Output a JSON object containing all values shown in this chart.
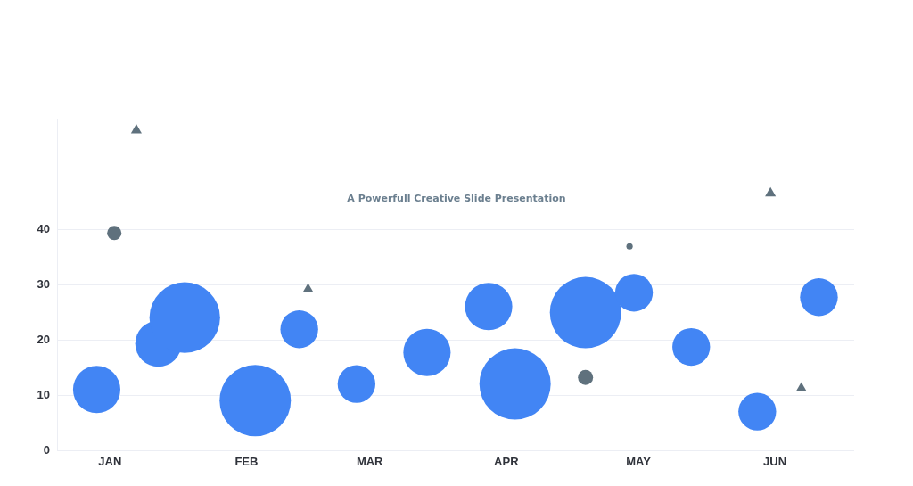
{
  "chart_data": {
    "type": "bubble",
    "subtitle": "A Powerfull Creative Slide Presentation",
    "xlim": [
      "--01-03",
      "--07-03"
    ],
    "xticks": [
      {
        "value": "--01-15",
        "label": "JAN"
      },
      {
        "value": "--02-15",
        "label": "FEB"
      },
      {
        "value": "--03-15",
        "label": "MAR"
      },
      {
        "value": "--04-15",
        "label": "APR"
      },
      {
        "value": "--05-15",
        "label": "MAY"
      },
      {
        "value": "--06-15",
        "label": "JUN"
      }
    ],
    "ylim": [
      0,
      60
    ],
    "yticks": [
      0,
      10,
      20,
      30,
      40
    ],
    "grid": "y",
    "legend": false,
    "series": [
      {
        "color": "#4285f4",
        "x": [
          "--01-12",
          "--01-26",
          "--02-01",
          "--02-17",
          "--02-27",
          "--03-12",
          "--03-28",
          "--04-11",
          "--04-17",
          "--05-03",
          "--05-14",
          "--05-27",
          "--06-11",
          "--06-25"
        ],
        "values": [
          11.0,
          19.3,
          24.0,
          9.0,
          21.9,
          12.0,
          17.7,
          26.0,
          12.0,
          24.9,
          28.5,
          18.7,
          7.0,
          27.7
        ],
        "sizes": [
          0.44,
          0.42,
          0.98,
          1,
          0.28,
          0.28,
          0.44,
          0.44,
          1,
          1,
          0.28,
          0.28,
          0.28,
          0.28
        ]
      },
      {
        "color": "#5f717d",
        "x": [
          "--01-16",
          "--05-03",
          "--05-13"
        ],
        "values": [
          39.3,
          13.2,
          36.9
        ],
        "sizes": [
          0.04,
          0.045,
          0.008
        ]
      },
      {
        "type": "scatter",
        "marker": "triangle",
        "color": "#5f717d",
        "x": [
          "--01-21",
          "--03-01",
          "--06-14",
          "--06-21"
        ],
        "values": [
          57.9,
          29.1,
          46.5,
          11.2
        ]
      }
    ]
  }
}
